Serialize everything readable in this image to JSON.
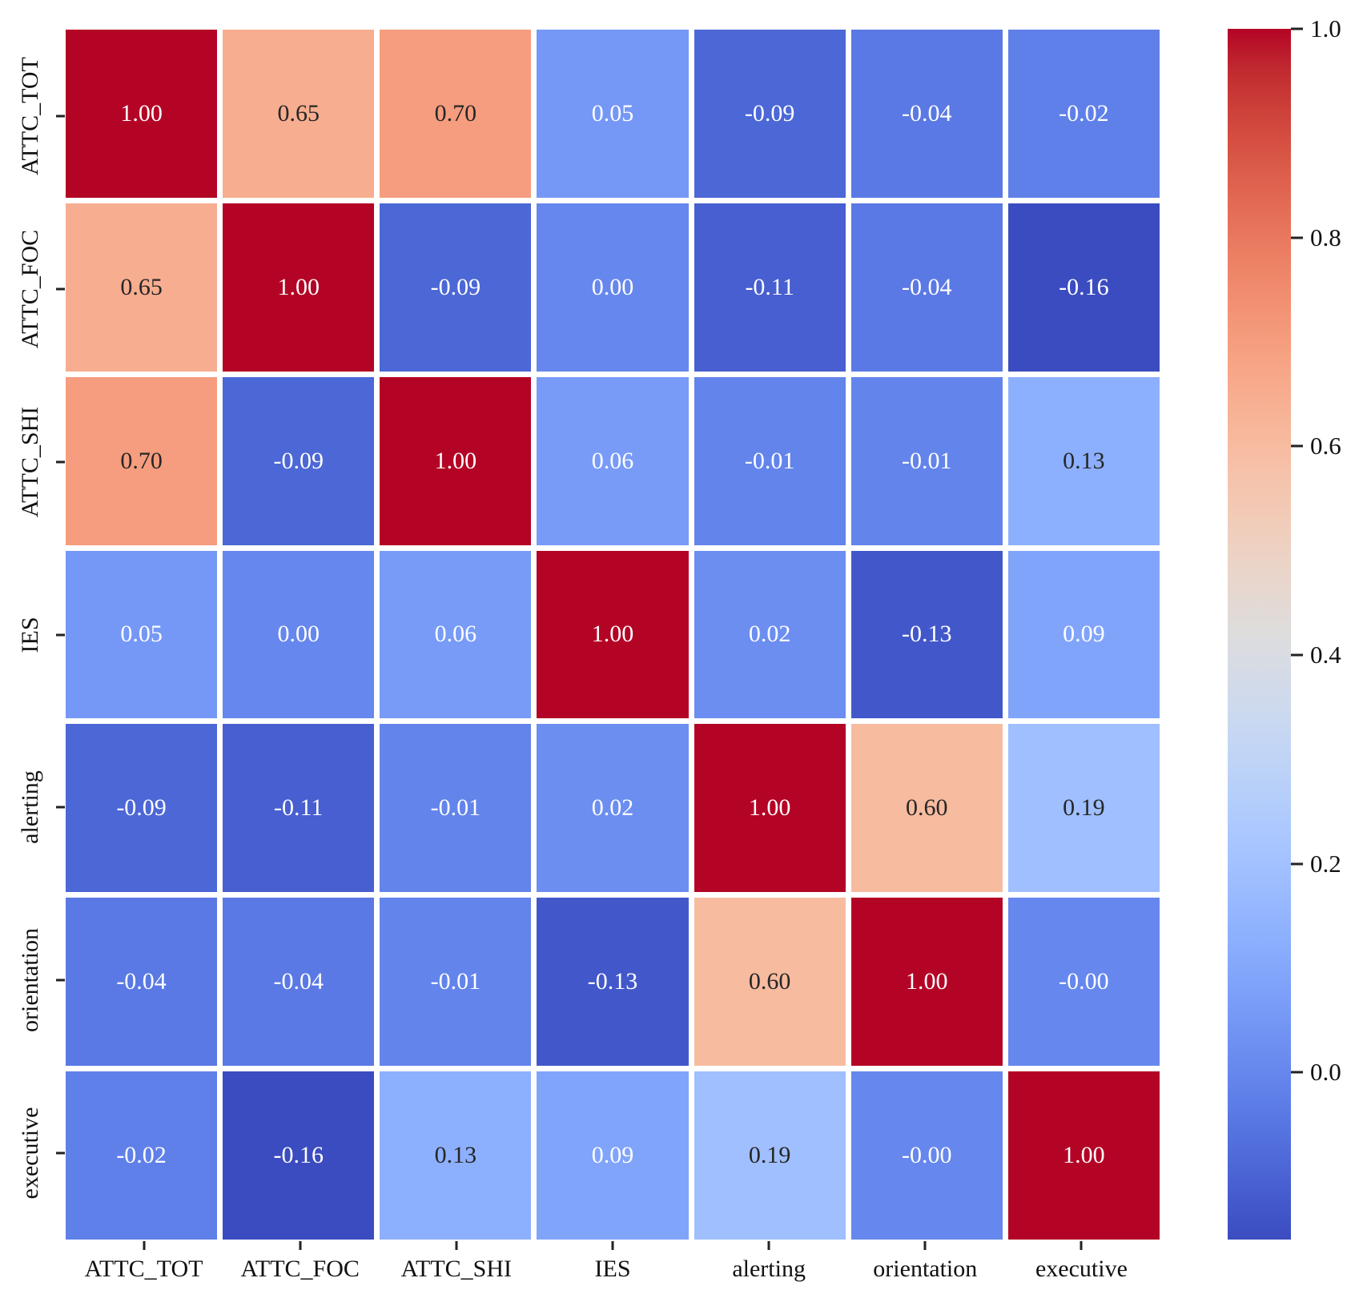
{
  "figure": {
    "background": "#ffffff",
    "annotation_dark_color": "#262626",
    "annotation_light_color": "#ffffff",
    "axis_text_color": "#111111"
  },
  "chart_data": {
    "type": "heatmap",
    "title": "",
    "xlabel": "",
    "ylabel": "",
    "categories": [
      "ATTC_TOT",
      "ATTC_FOC",
      "ATTC_SHI",
      "IES",
      "alerting",
      "orientation",
      "executive"
    ],
    "matrix": [
      [
        "1.00",
        "0.65",
        "0.70",
        "0.05",
        "-0.09",
        "-0.04",
        "-0.02"
      ],
      [
        "0.65",
        "1.00",
        "-0.09",
        "0.00",
        "-0.11",
        "-0.04",
        "-0.16"
      ],
      [
        "0.70",
        "-0.09",
        "1.00",
        "0.06",
        "-0.01",
        "-0.01",
        "0.13"
      ],
      [
        "0.05",
        "0.00",
        "0.06",
        "1.00",
        "0.02",
        "-0.13",
        "0.09"
      ],
      [
        "-0.09",
        "-0.11",
        "-0.01",
        "0.02",
        "1.00",
        "0.60",
        "0.19"
      ],
      [
        "-0.04",
        "-0.04",
        "-0.01",
        "-0.13",
        "0.60",
        "1.00",
        "-0.00"
      ],
      [
        "-0.02",
        "-0.16",
        "0.13",
        "0.09",
        "0.19",
        "-0.00",
        "1.00"
      ]
    ],
    "colormap": "coolwarm",
    "vmin": -0.16,
    "vmax": 1.0,
    "grid_line_color": "#ffffff",
    "colorbar": {
      "position": "right",
      "ticks": [
        {
          "label": "1.0",
          "value": 1.0
        },
        {
          "label": "0.8",
          "value": 0.8
        },
        {
          "label": "0.6",
          "value": 0.6
        },
        {
          "label": "0.4",
          "value": 0.4
        },
        {
          "label": "0.2",
          "value": 0.2
        },
        {
          "label": "0.0",
          "value": 0.0
        }
      ]
    }
  }
}
